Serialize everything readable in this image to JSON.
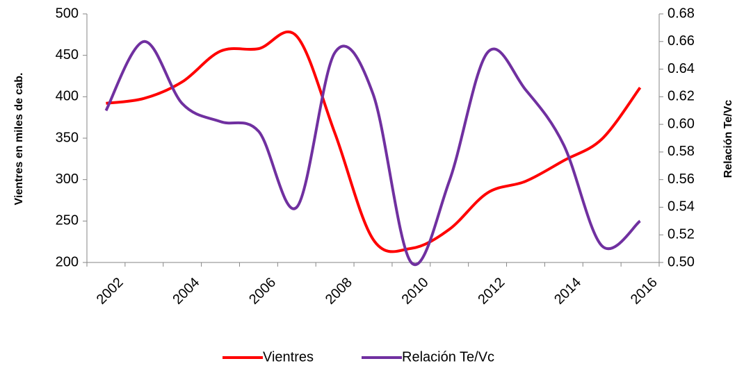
{
  "chart_data": {
    "type": "line",
    "categories": [
      "2002",
      null,
      "2004",
      null,
      "2006",
      null,
      "2008",
      null,
      "2010",
      null,
      "2012",
      null,
      "2014",
      null,
      "2016"
    ],
    "ylabel": "Vientres en miles de cab.",
    "y2label": "Relación Te/Vc",
    "ylim": [
      200,
      500
    ],
    "yticks": [
      200,
      250,
      300,
      350,
      400,
      450,
      500
    ],
    "y2lim": [
      0.5,
      0.68
    ],
    "y2ticks": [
      {
        "value": 0.5,
        "label": "0.50"
      },
      {
        "value": 0.52,
        "label": "0.52"
      },
      {
        "value": 0.54,
        "label": "0.54"
      },
      {
        "value": 0.56,
        "label": "0.56"
      },
      {
        "value": 0.58,
        "label": "0.58"
      },
      {
        "value": 0.6,
        "label": "0.60"
      },
      {
        "value": 0.62,
        "label": "0.62"
      },
      {
        "value": 0.64,
        "label": "0.64"
      },
      {
        "value": 0.66,
        "label": "0.66"
      },
      {
        "value": 0.68,
        "label": "0.68"
      }
    ],
    "legend": "bottom",
    "series": [
      {
        "name": "Vientres",
        "color": "#ff0000",
        "values": [
          392,
          398,
          418,
          455,
          458,
          473,
          356,
          228,
          217,
          240,
          284,
          298,
          323,
          349,
          411
        ]
      },
      {
        "name": "Relación Te/Vc",
        "color": "#7030a0",
        "axis": "y2",
        "values": [
          0.61,
          0.66,
          0.615,
          0.602,
          0.595,
          0.54,
          0.652,
          0.622,
          0.5,
          0.559,
          0.652,
          0.625,
          0.585,
          0.512,
          0.53
        ]
      }
    ]
  }
}
